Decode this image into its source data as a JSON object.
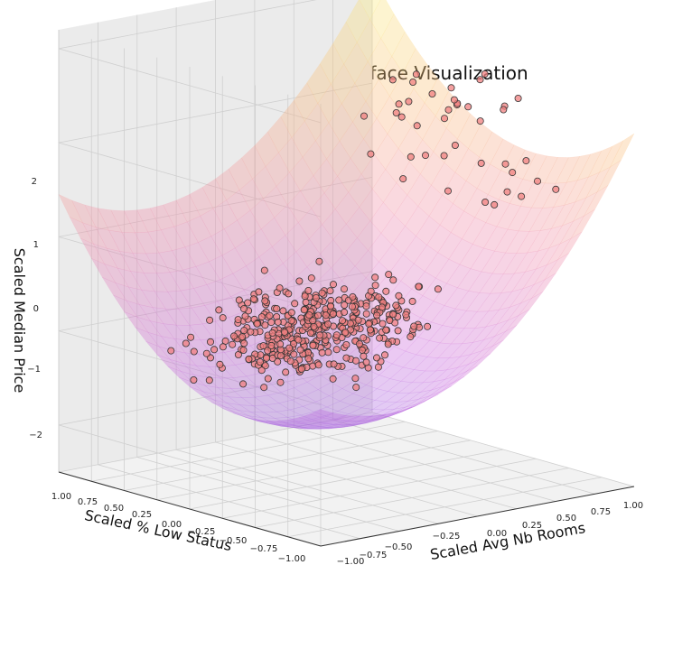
{
  "chart_data": {
    "type": "scatter",
    "title": "Initial State Regression surface Visualization",
    "xlabel": "Scaled Avg Nb Rooms",
    "ylabel": "Scaled % Low Status",
    "zlabel": "Scaled Median Price",
    "x_ticks": [
      "−1.00",
      "−0.75",
      "−0.50",
      "−0.25",
      "0.00",
      "0.25",
      "0.50",
      "0.75",
      "1.00"
    ],
    "y_ticks": [
      "1.00",
      "0.75",
      "0.50",
      "0.25",
      "0.00",
      "−0.25",
      "−0.50",
      "−0.75",
      "−1.00"
    ],
    "z_ticks": [
      "2",
      "1",
      "0",
      "−1",
      "−2"
    ],
    "xlim": [
      -1,
      1
    ],
    "ylim": [
      -1,
      1
    ],
    "zlim": [
      -2.5,
      2.2
    ],
    "grid": true,
    "surface": {
      "description": "quadratic regression surface over the x–y plane",
      "colormap": "plasma-like (purple low to yellow high)",
      "alpha": 0.35
    },
    "points_style": {
      "fill": "#f08080",
      "edge": "#333333"
    },
    "points_summary": "Approximately 500 data points clustered near z≈0 to −1, rising to z≈1 at high x (about 0.75 to 1.00)."
  }
}
